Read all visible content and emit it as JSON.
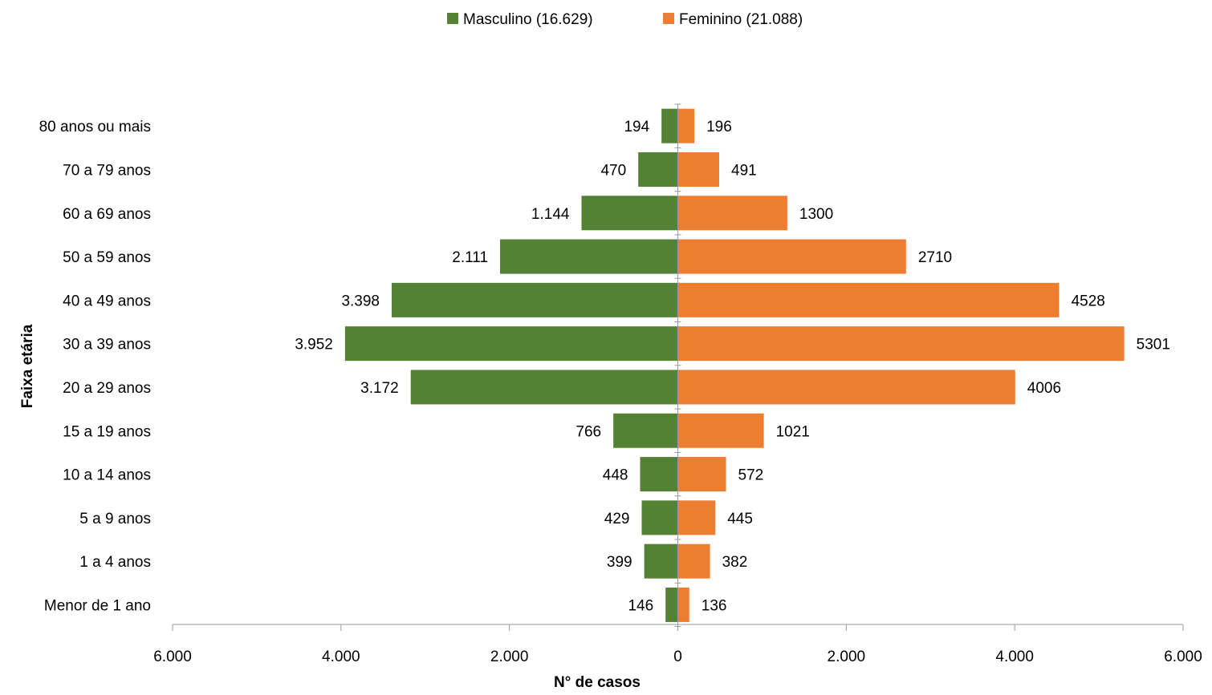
{
  "chart_data": {
    "type": "bar",
    "orientation": "horizontal",
    "layout": "population-pyramid",
    "categories": [
      "80 anos ou mais",
      "70 a 79 anos",
      "60 a 69 anos",
      "50 a 59 anos",
      "40 a 49 anos",
      "30 a 39 anos",
      "20 a 29 anos",
      "15 a 19 anos",
      "10 a 14 anos",
      "5 a 9 anos",
      "1 a 4 anos",
      "Menor de 1 ano"
    ],
    "series": [
      {
        "name": "Masculino (16.629)",
        "side": "left",
        "color": "#548235",
        "values": [
          194,
          470,
          1144,
          2111,
          3398,
          3952,
          3172,
          766,
          448,
          429,
          399,
          146
        ],
        "labels": [
          "194",
          "470",
          "1.144",
          "2.111",
          "3.398",
          "3.952",
          "3.172",
          "766",
          "448",
          "429",
          "399",
          "146"
        ]
      },
      {
        "name": "Feminino (21.088)",
        "side": "right",
        "color": "#ED7D31",
        "values": [
          196,
          491,
          1300,
          2710,
          4528,
          5301,
          4006,
          1021,
          572,
          445,
          382,
          136
        ],
        "labels": [
          "196",
          "491",
          "1300",
          "2710",
          "4528",
          "5301",
          "4006",
          "1021",
          "572",
          "445",
          "382",
          "136"
        ]
      }
    ],
    "xaxis": {
      "label": "N° de casos",
      "range": [
        -6000,
        6000
      ],
      "ticks": [
        -6000,
        -4000,
        -2000,
        0,
        2000,
        4000,
        6000
      ],
      "tick_labels": [
        "6.000",
        "4.000",
        "2.000",
        "0",
        "2.000",
        "4.000",
        "6.000"
      ]
    },
    "yaxis": {
      "label": "Faixa etária"
    },
    "legend": {
      "position": "top-center"
    },
    "grid": false
  }
}
